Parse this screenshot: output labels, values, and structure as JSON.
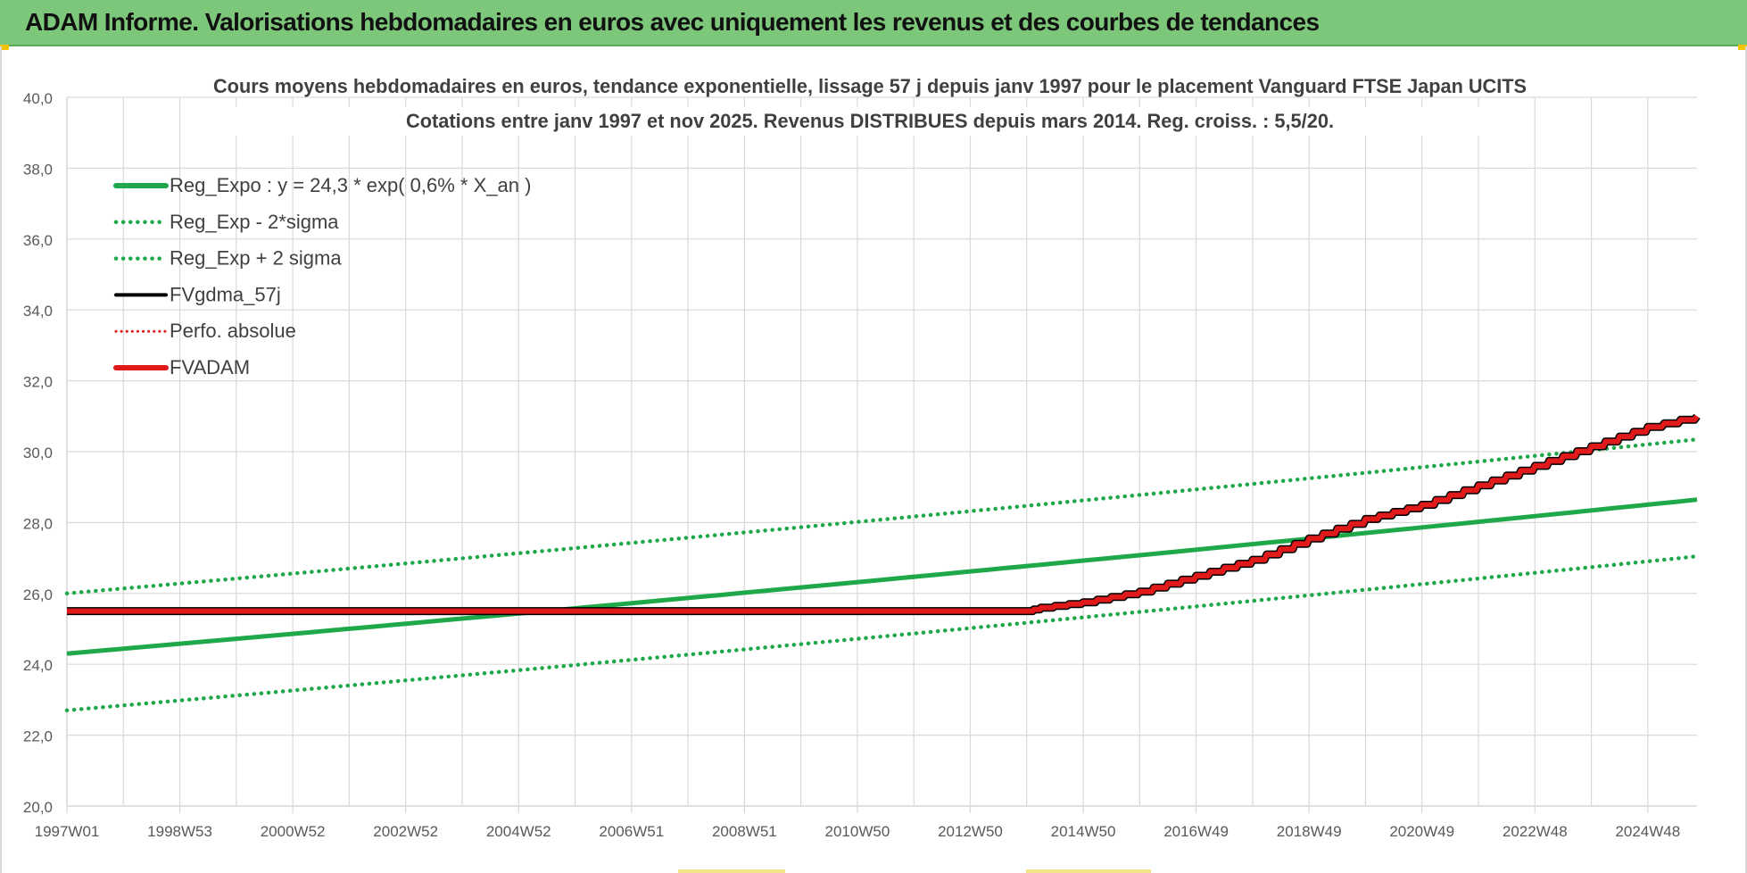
{
  "page": {
    "banner_title": "ADAM Informe. Valorisations hebdomadaires en euros avec uniquement les revenus et des courbes de tendances"
  },
  "chart_data": {
    "type": "line",
    "title_line1": "Cours moyens hebdomadaires en euros, tendance exponentielle, lissage 57 j depuis janv 1997 pour le placement Vanguard FTSE Japan UCITS",
    "title_line2": "Cotations entre janv 1997 et nov 2025. Revenus DISTRIBUES depuis mars 2014. Reg. croiss. : 5,5/20.",
    "x_start_year": 1997.0,
    "x_end_year": 2025.87,
    "ylim": [
      20,
      40
    ],
    "y_ticks": [
      "20,0",
      "22,0",
      "24,0",
      "26,0",
      "28,0",
      "30,0",
      "32,0",
      "34,0",
      "36,0",
      "38,0",
      "40,0"
    ],
    "x_tick_labels": [
      "1997W01",
      "1998W53",
      "2000W52",
      "2002W52",
      "2004W52",
      "2006W51",
      "2008W51",
      "2010W50",
      "2012W50",
      "2014W50",
      "2016W49",
      "2018W49",
      "2020W49",
      "2022W48",
      "2024W48"
    ],
    "grid": true,
    "legend_position": "top-left",
    "colors": {
      "reg": "#1fa84a",
      "fvgdma": "#000000",
      "perfo": "#e0191b",
      "fvadam": "#e0191b",
      "grid": "#d9d9d9",
      "axis_text": "#595959",
      "title_text": "#404040"
    },
    "series": [
      {
        "name": "Reg_Expo : y = 24,3 * exp( 0,6% *  X_an )",
        "style": "solid-green",
        "a": 24.3,
        "rate": 0.0057
      },
      {
        "name": "Reg_Exp - 2*sigma",
        "style": "dotted-green",
        "offset": -1.6
      },
      {
        "name": "Reg_Exp + 2 sigma",
        "style": "dotted-green",
        "offset": 1.7
      },
      {
        "name": "FVgdma_57j",
        "style": "solid-black"
      },
      {
        "name": "Perfo. absolue",
        "style": "dotted-red"
      },
      {
        "name": "FVADAM",
        "style": "solid-red",
        "points": [
          [
            1997.0,
            25.5
          ],
          [
            2014.0,
            25.5
          ],
          [
            2014.25,
            25.6
          ],
          [
            2015.0,
            25.75
          ],
          [
            2016.0,
            26.05
          ],
          [
            2017.0,
            26.5
          ],
          [
            2018.0,
            26.95
          ],
          [
            2019.0,
            27.55
          ],
          [
            2020.0,
            28.1
          ],
          [
            2021.0,
            28.5
          ],
          [
            2022.0,
            29.05
          ],
          [
            2023.0,
            29.6
          ],
          [
            2024.0,
            30.15
          ],
          [
            2025.0,
            30.7
          ],
          [
            2025.87,
            31.0
          ]
        ]
      }
    ]
  }
}
